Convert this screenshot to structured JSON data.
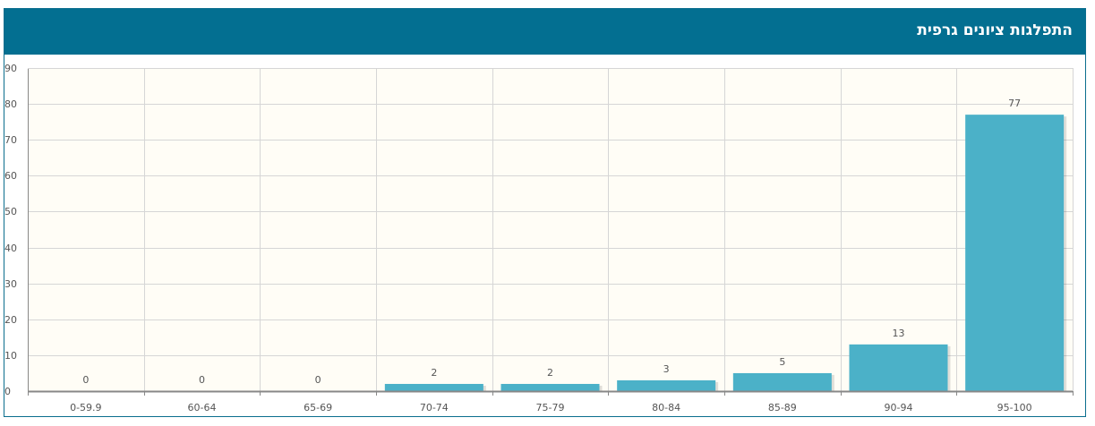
{
  "panel": {
    "title": "התפלגות ציונים גרפית"
  },
  "chart_data": {
    "type": "bar",
    "categories": [
      "0-59.9",
      "60-64",
      "65-69",
      "70-74",
      "75-79",
      "80-84",
      "85-89",
      "90-94",
      "95-100"
    ],
    "values": [
      0,
      0,
      0,
      2,
      2,
      3,
      5,
      13,
      77
    ],
    "yticks": [
      0,
      10,
      20,
      30,
      40,
      50,
      60,
      70,
      80,
      90
    ],
    "ylim": [
      0,
      90
    ],
    "grid": true,
    "colors": {
      "bar": "#4bb1c8",
      "plot_bg": "#fffdf6",
      "grid": "#d6d6d6",
      "axis": "#888888",
      "header": "#036f91"
    }
  }
}
